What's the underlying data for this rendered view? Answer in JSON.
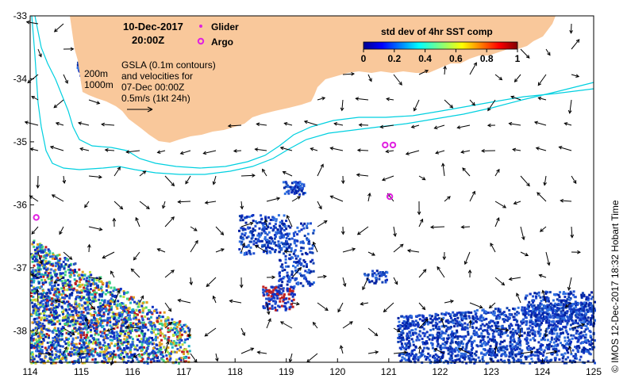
{
  "map": {
    "date_label": "10-Dec-2017",
    "time_label": "20:00Z",
    "legend": {
      "glider_label": "Glider",
      "argo_label": "Argo",
      "glider_color": "#e020e0",
      "argo_color": "#e020e0"
    },
    "gsla_note": {
      "line1": "GSLA (0.1m contours)",
      "line2": "and velocities for",
      "line3": "07-Dec 00:00Z",
      "line4": "0.5m/s (1kt 24h)"
    },
    "depth_labels": {
      "shallow": "200m",
      "deep": "1000m"
    },
    "colorbar": {
      "title": "std dev of 4hr SST comp",
      "ticks": [
        "0",
        "0.2",
        "0.4",
        "0.6",
        "0.8",
        "1"
      ],
      "tick_values": [
        0,
        0.2,
        0.4,
        0.6,
        0.8,
        1
      ]
    },
    "credit": "© IMOS 12-Dec-2017 18:32 Hobart Time",
    "colors": {
      "land": "#f9c89b",
      "isobath": "#00d0e0",
      "sst_low": "#1030c0",
      "sst_mid": "#20c0c0",
      "argo": "#e020e0"
    },
    "argo_floats": [
      {
        "lon": 120.93,
        "lat": -35.05
      },
      {
        "lon": 121.08,
        "lat": -35.05
      },
      {
        "lon": 121.02,
        "lat": -35.87
      },
      {
        "lon": 114.12,
        "lat": -36.2
      }
    ]
  },
  "chart_data": {
    "type": "map",
    "xlim": [
      114,
      125
    ],
    "ylim": [
      -38.5,
      -33
    ],
    "x_ticks": [
      114,
      115,
      116,
      117,
      118,
      119,
      120,
      121,
      122,
      123,
      124,
      125
    ],
    "y_ticks": [
      -33,
      -34,
      -35,
      -36,
      -37,
      -38
    ],
    "x_tick_labels": [
      "114",
      "115",
      "116",
      "117",
      "118",
      "119",
      "120",
      "121",
      "122",
      "123",
      "124",
      "125"
    ],
    "y_tick_labels": [
      "-33",
      "-34",
      "-35",
      "-36",
      "-37",
      "-38"
    ],
    "grid": false
  }
}
